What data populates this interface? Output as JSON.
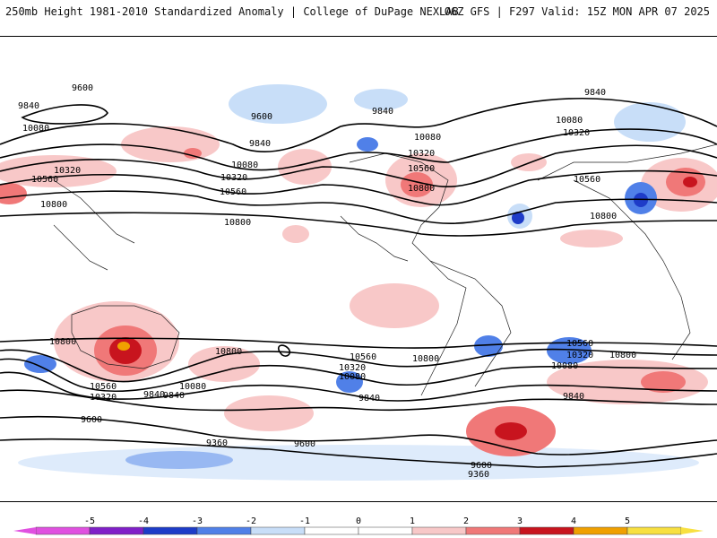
{
  "header": {
    "title": "250mb Height 1981-2010 Standardized Anomaly | College of DuPage NEXLAB",
    "run_info": "06Z GFS | F297 Valid: 15Z MON APR 07 2025"
  },
  "map": {
    "contour_labels": [
      "9600",
      "9840",
      "10080",
      "10320",
      "10560",
      "10800",
      "9600",
      "9840",
      "10080",
      "10320",
      "10560",
      "10800",
      "9840",
      "10080",
      "10320",
      "10560",
      "10800",
      "9840",
      "10080",
      "10320",
      "10560",
      "10800",
      "10800",
      "10560",
      "10320",
      "10080",
      "9840",
      "9600",
      "10800",
      "10560",
      "10320",
      "10080",
      "9840",
      "9600",
      "9360",
      "10560",
      "10320",
      "10080",
      "10800",
      "9840",
      "9600",
      "9360",
      "9840",
      "10800"
    ],
    "anomaly_colors": {
      "strong_positive": "#c8141e",
      "positive": "#f07878",
      "weak_positive": "#f8c8c8",
      "weak_negative": "#c8def8",
      "negative": "#5080e8",
      "strong_negative": "#1e3cc8",
      "extreme_positive": "#f0a000"
    }
  },
  "colorbar": {
    "tick_labels": [
      "-5",
      "-4",
      "-3",
      "-2",
      "-1",
      "0",
      "1",
      "2",
      "3",
      "4",
      "5"
    ],
    "colors": [
      "#e050e0",
      "#8020c8",
      "#1e3cc8",
      "#5080e8",
      "#c8def8",
      "#ffffff",
      "#ffffff",
      "#f8c8c8",
      "#f07878",
      "#c8141e",
      "#f0a000",
      "#f8e040"
    ]
  }
}
